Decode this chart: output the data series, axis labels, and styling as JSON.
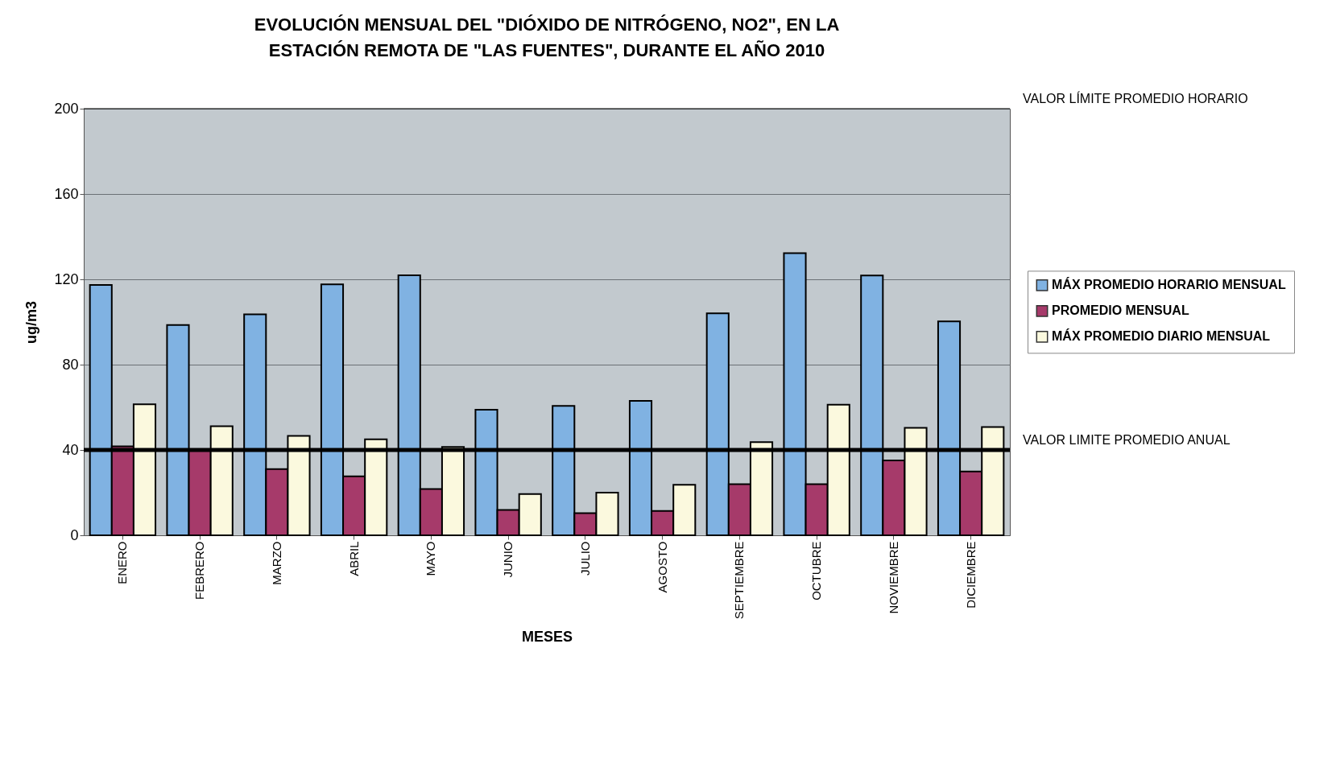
{
  "chart_data": {
    "type": "bar",
    "title": "EVOLUCIÓN MENSUAL DEL \"DIÓXIDO DE NITRÓGENO, NO2\", EN LA ESTACIÓN REMOTA DE \"LAS FUENTES\", DURANTE EL AÑO 2010",
    "xlabel": "MESES",
    "ylabel": "ug/m3",
    "categories": [
      "ENERO",
      "FEBRERO",
      "MARZO",
      "ABRIL",
      "MAYO",
      "JUNIO",
      "JULIO",
      "AGOSTO",
      "SEPTIEMBRE",
      "OCTUBRE",
      "NOVIEMBRE",
      "DICIEMBRE"
    ],
    "series": [
      {
        "name": "MÁX PROMEDIO HORARIO MENSUAL",
        "color": "#80b2e2",
        "values": [
          117.4,
          98.6,
          103.6,
          117.6,
          121.9,
          58.9,
          60.7,
          63,
          104.1,
          132.3,
          121.8,
          100.3
        ]
      },
      {
        "name": "PROMEDIO MENSUAL",
        "color": "#a63a6a",
        "values": [
          41.7,
          40,
          31,
          27.6,
          21.7,
          11.9,
          10.4,
          11.4,
          24,
          24,
          35.1,
          29.9
        ]
      },
      {
        "name": "MÁX PROMEDIO DIARIO MENSUAL",
        "color": "#fbf9de",
        "values": [
          61.4,
          51.1,
          46.6,
          45,
          41.4,
          19.3,
          20,
          23.7,
          43.7,
          61.2,
          50.4,
          50.8
        ]
      }
    ],
    "ylim": [
      0,
      200
    ],
    "yticks": [
      0,
      40,
      80,
      120,
      160,
      200
    ],
    "grid": "y",
    "legend": "right",
    "ref_lines": [
      {
        "axis": "y",
        "value": 200,
        "label": "VALOR LÍMITE PROMEDIO HORARIO",
        "color": "#000000"
      },
      {
        "axis": "y",
        "value": 40,
        "label": "VALOR LIMITE PROMEDIO ANUAL",
        "color": "#000000"
      }
    ]
  }
}
